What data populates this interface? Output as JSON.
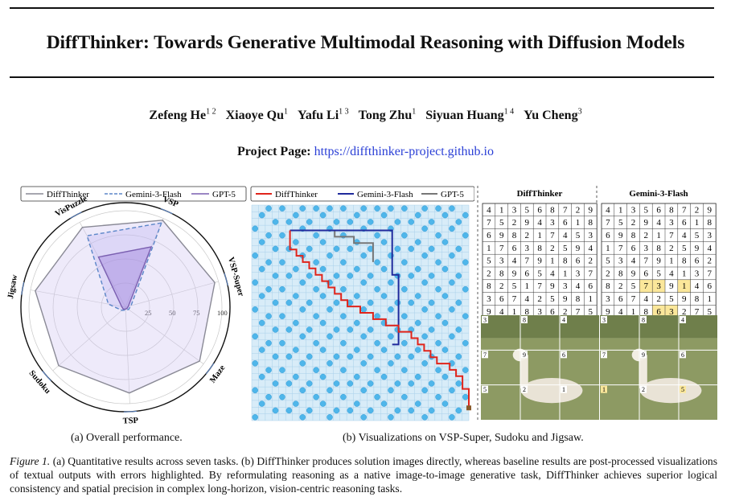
{
  "title": "DiffThinker: Towards Generative Multimodal Reasoning with Diffusion Models",
  "authors": [
    {
      "name": "Zefeng He",
      "aff": "1 2"
    },
    {
      "name": "Xiaoye Qu",
      "aff": "1"
    },
    {
      "name": "Yafu Li",
      "aff": "1 3"
    },
    {
      "name": "Tong Zhu",
      "aff": "1"
    },
    {
      "name": "Siyuan Huang",
      "aff": "1 4"
    },
    {
      "name": "Yu Cheng",
      "aff": "3"
    }
  ],
  "project": {
    "label": "Project Page:",
    "url": "https://diffthinker-project.github.io"
  },
  "radar": {
    "legend": [
      {
        "name": "DiffThinker",
        "color": "#8a8a96",
        "style": "solid"
      },
      {
        "name": "Gemini-3-Flash",
        "color": "#5b86c8",
        "style": "dashed"
      },
      {
        "name": "GPT-5",
        "color": "#7a5fb0",
        "style": "solid"
      }
    ],
    "axes": [
      "VSP",
      "VSP-Super",
      "Maze",
      "TSP",
      "Sudoku",
      "Jigsaw",
      "VisPuzzle"
    ],
    "ticks": [
      "25",
      "50",
      "75",
      "100"
    ],
    "scale_max": 100,
    "series": {
      "DiffThinker": [
        98,
        96,
        95,
        89,
        92,
        95,
        94
      ],
      "Gemini-3-Flash": [
        95,
        6,
        4,
        3,
        5,
        18,
        84
      ],
      "GPT-5": [
        68,
        3,
        2,
        2,
        3,
        4,
        59
      ]
    }
  },
  "vsp": {
    "legend": [
      {
        "name": "DiffThinker",
        "color": "#e0241b"
      },
      {
        "name": "Gemini-3-Flash",
        "color": "#1f2a9c"
      },
      {
        "name": "GPT-5",
        "color": "#777777"
      }
    ],
    "grid_size": 32,
    "holes": [
      [
        0,
        2
      ],
      [
        0,
        4
      ],
      [
        0,
        7
      ],
      [
        0,
        9
      ],
      [
        0,
        11
      ],
      [
        0,
        13
      ],
      [
        0,
        16
      ],
      [
        0,
        18
      ],
      [
        0,
        20
      ],
      [
        0,
        22
      ],
      [
        0,
        25
      ],
      [
        0,
        27
      ],
      [
        0,
        29
      ],
      [
        1,
        1
      ],
      [
        1,
        6
      ],
      [
        1,
        10
      ],
      [
        1,
        15
      ],
      [
        1,
        19
      ],
      [
        1,
        24
      ],
      [
        1,
        28
      ],
      [
        1,
        31
      ],
      [
        2,
        3
      ],
      [
        2,
        5
      ],
      [
        2,
        8
      ],
      [
        2,
        12
      ],
      [
        2,
        14
      ],
      [
        2,
        17
      ],
      [
        2,
        21
      ],
      [
        2,
        23
      ],
      [
        2,
        26
      ],
      [
        2,
        30
      ],
      [
        3,
        0
      ],
      [
        3,
        7
      ],
      [
        3,
        11
      ],
      [
        3,
        16
      ],
      [
        3,
        20
      ],
      [
        3,
        25
      ],
      [
        3,
        29
      ],
      [
        4,
        2
      ],
      [
        4,
        4
      ],
      [
        4,
        9
      ],
      [
        4,
        13
      ],
      [
        4,
        18
      ],
      [
        4,
        22
      ],
      [
        4,
        27
      ],
      [
        4,
        31
      ],
      [
        5,
        1
      ],
      [
        5,
        6
      ],
      [
        5,
        10
      ],
      [
        5,
        15
      ],
      [
        5,
        19
      ],
      [
        5,
        24
      ],
      [
        5,
        28
      ],
      [
        6,
        3
      ],
      [
        6,
        5
      ],
      [
        6,
        8
      ],
      [
        6,
        12
      ],
      [
        6,
        14
      ],
      [
        6,
        17
      ],
      [
        6,
        21
      ],
      [
        6,
        23
      ],
      [
        6,
        26
      ],
      [
        6,
        30
      ],
      [
        7,
        0
      ],
      [
        7,
        7
      ],
      [
        7,
        11
      ],
      [
        7,
        16
      ],
      [
        7,
        20
      ],
      [
        7,
        25
      ],
      [
        7,
        29
      ],
      [
        8,
        2
      ],
      [
        8,
        4
      ],
      [
        8,
        9
      ],
      [
        8,
        13
      ],
      [
        8,
        18
      ],
      [
        8,
        22
      ],
      [
        8,
        27
      ],
      [
        8,
        31
      ],
      [
        9,
        1
      ],
      [
        9,
        6
      ],
      [
        9,
        10
      ],
      [
        9,
        15
      ],
      [
        9,
        19
      ],
      [
        9,
        24
      ],
      [
        9,
        28
      ],
      [
        10,
        3
      ],
      [
        10,
        5
      ],
      [
        10,
        8
      ],
      [
        10,
        12
      ],
      [
        10,
        14
      ],
      [
        10,
        17
      ],
      [
        10,
        21
      ],
      [
        10,
        23
      ],
      [
        10,
        26
      ],
      [
        10,
        30
      ],
      [
        11,
        0
      ],
      [
        11,
        7
      ],
      [
        11,
        11
      ],
      [
        11,
        16
      ],
      [
        11,
        20
      ],
      [
        11,
        25
      ],
      [
        11,
        29
      ],
      [
        12,
        2
      ],
      [
        12,
        4
      ],
      [
        12,
        9
      ],
      [
        12,
        13
      ],
      [
        12,
        18
      ],
      [
        12,
        22
      ],
      [
        12,
        27
      ],
      [
        12,
        31
      ],
      [
        13,
        1
      ],
      [
        13,
        6
      ],
      [
        13,
        10
      ],
      [
        13,
        15
      ],
      [
        13,
        19
      ],
      [
        13,
        24
      ],
      [
        13,
        28
      ],
      [
        14,
        3
      ],
      [
        14,
        5
      ],
      [
        14,
        8
      ],
      [
        14,
        12
      ],
      [
        14,
        14
      ],
      [
        14,
        17
      ],
      [
        14,
        21
      ],
      [
        14,
        23
      ],
      [
        14,
        26
      ],
      [
        14,
        30
      ],
      [
        15,
        0
      ],
      [
        15,
        7
      ],
      [
        15,
        11
      ],
      [
        15,
        16
      ],
      [
        15,
        20
      ],
      [
        15,
        25
      ],
      [
        15,
        29
      ],
      [
        16,
        2
      ],
      [
        16,
        4
      ],
      [
        16,
        9
      ],
      [
        16,
        13
      ],
      [
        16,
        18
      ],
      [
        16,
        22
      ],
      [
        16,
        27
      ],
      [
        16,
        31
      ],
      [
        17,
        1
      ],
      [
        17,
        6
      ],
      [
        17,
        10
      ],
      [
        17,
        15
      ],
      [
        17,
        19
      ],
      [
        17,
        24
      ],
      [
        17,
        28
      ],
      [
        18,
        3
      ],
      [
        18,
        5
      ],
      [
        18,
        8
      ],
      [
        18,
        12
      ],
      [
        18,
        14
      ],
      [
        18,
        17
      ],
      [
        18,
        21
      ],
      [
        18,
        23
      ],
      [
        18,
        26
      ],
      [
        18,
        30
      ],
      [
        19,
        0
      ],
      [
        19,
        7
      ],
      [
        19,
        11
      ],
      [
        19,
        16
      ],
      [
        19,
        20
      ],
      [
        19,
        25
      ],
      [
        19,
        29
      ],
      [
        20,
        2
      ],
      [
        20,
        4
      ],
      [
        20,
        9
      ],
      [
        20,
        13
      ],
      [
        20,
        18
      ],
      [
        20,
        22
      ],
      [
        20,
        27
      ],
      [
        20,
        31
      ],
      [
        21,
        1
      ],
      [
        21,
        6
      ],
      [
        21,
        10
      ],
      [
        21,
        15
      ],
      [
        21,
        19
      ],
      [
        21,
        24
      ],
      [
        21,
        28
      ],
      [
        22,
        3
      ],
      [
        22,
        5
      ],
      [
        22,
        8
      ],
      [
        22,
        12
      ],
      [
        22,
        14
      ],
      [
        22,
        17
      ],
      [
        22,
        21
      ],
      [
        22,
        23
      ],
      [
        22,
        26
      ],
      [
        22,
        30
      ],
      [
        23,
        0
      ],
      [
        23,
        7
      ],
      [
        23,
        11
      ],
      [
        23,
        16
      ],
      [
        23,
        20
      ],
      [
        23,
        25
      ],
      [
        23,
        29
      ],
      [
        24,
        2
      ],
      [
        24,
        4
      ],
      [
        24,
        9
      ],
      [
        24,
        13
      ],
      [
        24,
        18
      ],
      [
        24,
        22
      ],
      [
        24,
        27
      ],
      [
        24,
        31
      ],
      [
        25,
        1
      ],
      [
        25,
        6
      ],
      [
        25,
        10
      ],
      [
        25,
        15
      ],
      [
        25,
        19
      ],
      [
        25,
        24
      ],
      [
        25,
        28
      ],
      [
        26,
        3
      ],
      [
        26,
        5
      ],
      [
        26,
        8
      ],
      [
        26,
        12
      ],
      [
        26,
        14
      ],
      [
        26,
        17
      ],
      [
        26,
        21
      ],
      [
        26,
        23
      ],
      [
        26,
        26
      ],
      [
        26,
        30
      ],
      [
        27,
        0
      ],
      [
        27,
        7
      ],
      [
        27,
        11
      ],
      [
        27,
        16
      ],
      [
        27,
        20
      ],
      [
        27,
        25
      ],
      [
        27,
        29
      ],
      [
        28,
        2
      ],
      [
        28,
        4
      ],
      [
        28,
        9
      ],
      [
        28,
        13
      ],
      [
        28,
        18
      ],
      [
        28,
        22
      ],
      [
        28,
        27
      ],
      [
        28,
        31
      ],
      [
        29,
        1
      ],
      [
        29,
        6
      ],
      [
        29,
        10
      ],
      [
        29,
        15
      ],
      [
        29,
        19
      ],
      [
        29,
        24
      ],
      [
        29,
        28
      ],
      [
        30,
        3
      ],
      [
        30,
        5
      ],
      [
        30,
        8
      ],
      [
        30,
        12
      ],
      [
        30,
        14
      ],
      [
        30,
        17
      ],
      [
        30,
        21
      ],
      [
        30,
        23
      ],
      [
        30,
        26
      ],
      [
        30,
        30
      ],
      [
        31,
        0
      ],
      [
        31,
        7
      ],
      [
        31,
        11
      ],
      [
        31,
        16
      ],
      [
        31,
        20
      ],
      [
        31,
        25
      ],
      [
        31,
        29
      ]
    ],
    "paths": {
      "DiffThinker": [
        [
          6,
          4
        ],
        [
          6,
          7
        ],
        [
          7,
          7
        ],
        [
          7,
          8
        ],
        [
          8,
          8
        ],
        [
          8,
          9
        ],
        [
          9,
          9
        ],
        [
          9,
          10
        ],
        [
          10,
          10
        ],
        [
          10,
          11
        ],
        [
          11,
          11
        ],
        [
          11,
          12
        ],
        [
          12,
          12
        ],
        [
          12,
          13
        ],
        [
          13,
          13
        ],
        [
          13,
          14
        ],
        [
          14,
          14
        ],
        [
          14,
          15
        ],
        [
          15,
          15
        ],
        [
          15,
          16
        ],
        [
          17,
          16
        ],
        [
          17,
          17
        ],
        [
          19,
          17
        ],
        [
          19,
          18
        ],
        [
          21,
          18
        ],
        [
          21,
          19
        ],
        [
          23,
          19
        ],
        [
          23,
          20
        ],
        [
          25,
          20
        ],
        [
          25,
          21
        ],
        [
          26,
          21
        ],
        [
          26,
          22
        ],
        [
          27,
          22
        ],
        [
          27,
          23
        ],
        [
          28,
          23
        ],
        [
          28,
          24
        ],
        [
          29,
          24
        ],
        [
          29,
          25
        ],
        [
          31,
          25
        ],
        [
          31,
          26
        ],
        [
          32,
          26
        ],
        [
          32,
          27
        ],
        [
          33,
          27
        ],
        [
          33,
          29
        ],
        [
          34,
          29
        ],
        [
          34,
          32
        ]
      ],
      "Gemini-3-Flash": [
        [
          6,
          4
        ],
        [
          22,
          4
        ],
        [
          22,
          11
        ],
        [
          23,
          11
        ],
        [
          23,
          22
        ],
        [
          22,
          22
        ]
      ],
      "GPT-5": [
        [
          6,
          4
        ],
        [
          13,
          4
        ],
        [
          13,
          5
        ],
        [
          16,
          5
        ],
        [
          16,
          6
        ],
        [
          19,
          6
        ],
        [
          19,
          9
        ]
      ]
    }
  },
  "sudoku": {
    "headers": [
      "DiffThinker",
      "Gemini-3-Flash"
    ],
    "grid": [
      [
        4,
        1,
        3,
        5,
        6,
        8,
        7,
        2,
        9
      ],
      [
        7,
        5,
        2,
        9,
        4,
        3,
        6,
        1,
        8
      ],
      [
        6,
        9,
        8,
        2,
        1,
        7,
        4,
        5,
        3
      ],
      [
        1,
        7,
        6,
        3,
        8,
        2,
        5,
        9,
        4
      ],
      [
        5,
        3,
        4,
        7,
        9,
        1,
        8,
        6,
        2
      ],
      [
        2,
        8,
        9,
        6,
        5,
        4,
        1,
        3,
        7
      ],
      [
        8,
        2,
        5,
        1,
        7,
        9,
        3,
        4,
        6
      ],
      [
        3,
        6,
        7,
        4,
        2,
        5,
        9,
        8,
        1
      ],
      [
        9,
        4,
        1,
        8,
        3,
        6,
        2,
        7,
        5
      ]
    ],
    "gemini_grid": [
      [
        4,
        1,
        3,
        5,
        6,
        8,
        7,
        2,
        9
      ],
      [
        7,
        5,
        2,
        9,
        4,
        3,
        6,
        1,
        8
      ],
      [
        6,
        9,
        8,
        2,
        1,
        7,
        4,
        5,
        3
      ],
      [
        1,
        7,
        6,
        3,
        8,
        2,
        5,
        9,
        4
      ],
      [
        5,
        3,
        4,
        7,
        9,
        1,
        8,
        6,
        2
      ],
      [
        2,
        8,
        9,
        6,
        5,
        4,
        1,
        3,
        7
      ],
      [
        8,
        2,
        5,
        7,
        3,
        9,
        1,
        4,
        6
      ],
      [
        3,
        6,
        7,
        4,
        2,
        5,
        9,
        8,
        1
      ],
      [
        9,
        4,
        1,
        8,
        6,
        3,
        2,
        7,
        5
      ]
    ],
    "errors": [
      [
        6,
        3
      ],
      [
        6,
        4
      ],
      [
        6,
        6
      ],
      [
        8,
        4
      ],
      [
        8,
        5
      ]
    ],
    "error_color": "#fbe79a"
  },
  "jigsaw": {
    "diff_labels": [
      "3",
      "8",
      "4",
      "7",
      "9",
      "6",
      "5",
      "2",
      "1"
    ],
    "gemini_labels": [
      "3",
      "8",
      "4",
      "7",
      "9",
      "6",
      "1",
      "2",
      "5"
    ],
    "gemini_errors": [
      6,
      8
    ]
  },
  "subcaptions": {
    "a": "(a) Overall performance.",
    "b": "(b) Visualizations on VSP-Super, Sudoku and Jigsaw."
  },
  "caption": {
    "label": "Figure 1.",
    "text": " (a) Quantitative results across seven tasks. (b) DiffThinker produces solution images directly, whereas baseline results are post-processed visualizations of textual outputs with errors highlighted. By reformulating reasoning as a native image-to-image generative task, DiffThinker achieves superior logical consistency and spatial precision in complex long-horizon, vision-centric reasoning tasks."
  }
}
